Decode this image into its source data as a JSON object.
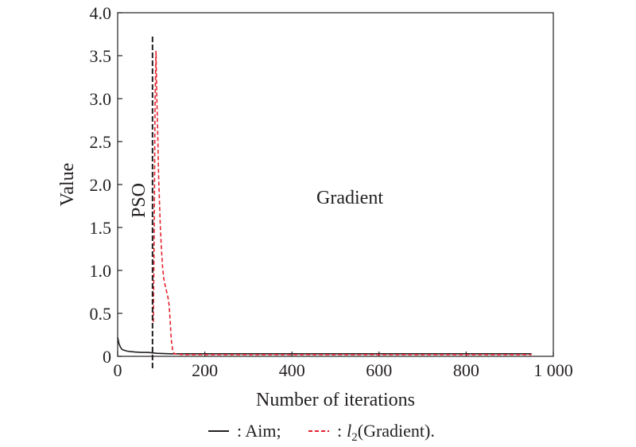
{
  "chart_data": {
    "type": "line",
    "xlabel": "Number of iterations",
    "ylabel": "Value",
    "xlim": [
      0,
      1000
    ],
    "ylim": [
      0,
      4.0
    ],
    "x_ticks": [
      0,
      200,
      400,
      600,
      800,
      1000
    ],
    "x_tick_labels": [
      "0",
      "200",
      "400",
      "600",
      "800",
      "1 000"
    ],
    "y_ticks": [
      0,
      0.5,
      1.0,
      1.5,
      2.0,
      2.5,
      3.0,
      3.5,
      4.0
    ],
    "y_tick_labels": [
      "0",
      "0.5",
      "1.0",
      "1.5",
      "2.0",
      "2.5",
      "3.0",
      "3.5",
      "4.0"
    ],
    "grid": false,
    "legend_position": "bottom",
    "annotations": {
      "pso_label": "PSO",
      "gradient_label": "Gradient",
      "divider_x": 80
    },
    "legend": {
      "aim_label": ": Aim;",
      "grad_prefix": ":",
      "grad_italic": "l",
      "grad_sub": "2",
      "grad_suffix": "(Gradient)."
    },
    "series": [
      {
        "name": "Aim",
        "style": "solid",
        "color": "#231f20",
        "x": [
          0,
          3,
          6,
          10,
          15,
          22,
          30,
          40,
          55,
          70,
          80,
          90,
          120,
          200,
          400,
          600,
          800,
          950
        ],
        "y": [
          0.22,
          0.15,
          0.11,
          0.08,
          0.07,
          0.06,
          0.055,
          0.05,
          0.045,
          0.045,
          0.04,
          0.035,
          0.03,
          0.03,
          0.03,
          0.03,
          0.03,
          0.03
        ]
      },
      {
        "name": "l2(Gradient)",
        "style": "dashed",
        "color": "#e4202c",
        "x": [
          82,
          84,
          86,
          88,
          90,
          92,
          94,
          96,
          98,
          100,
          103,
          106,
          110,
          115,
          118,
          120,
          123,
          126,
          130,
          140,
          150,
          200,
          300,
          400,
          500,
          600,
          700,
          800,
          900,
          950
        ],
        "y": [
          0.4,
          1.5,
          3.0,
          3.55,
          3.0,
          2.6,
          2.1,
          1.8,
          1.5,
          1.3,
          1.05,
          0.9,
          0.8,
          0.7,
          0.6,
          0.45,
          0.2,
          0.08,
          0.03,
          0.025,
          0.02,
          0.02,
          0.02,
          0.02,
          0.02,
          0.02,
          0.02,
          0.02,
          0.02,
          0.02
        ]
      }
    ]
  }
}
